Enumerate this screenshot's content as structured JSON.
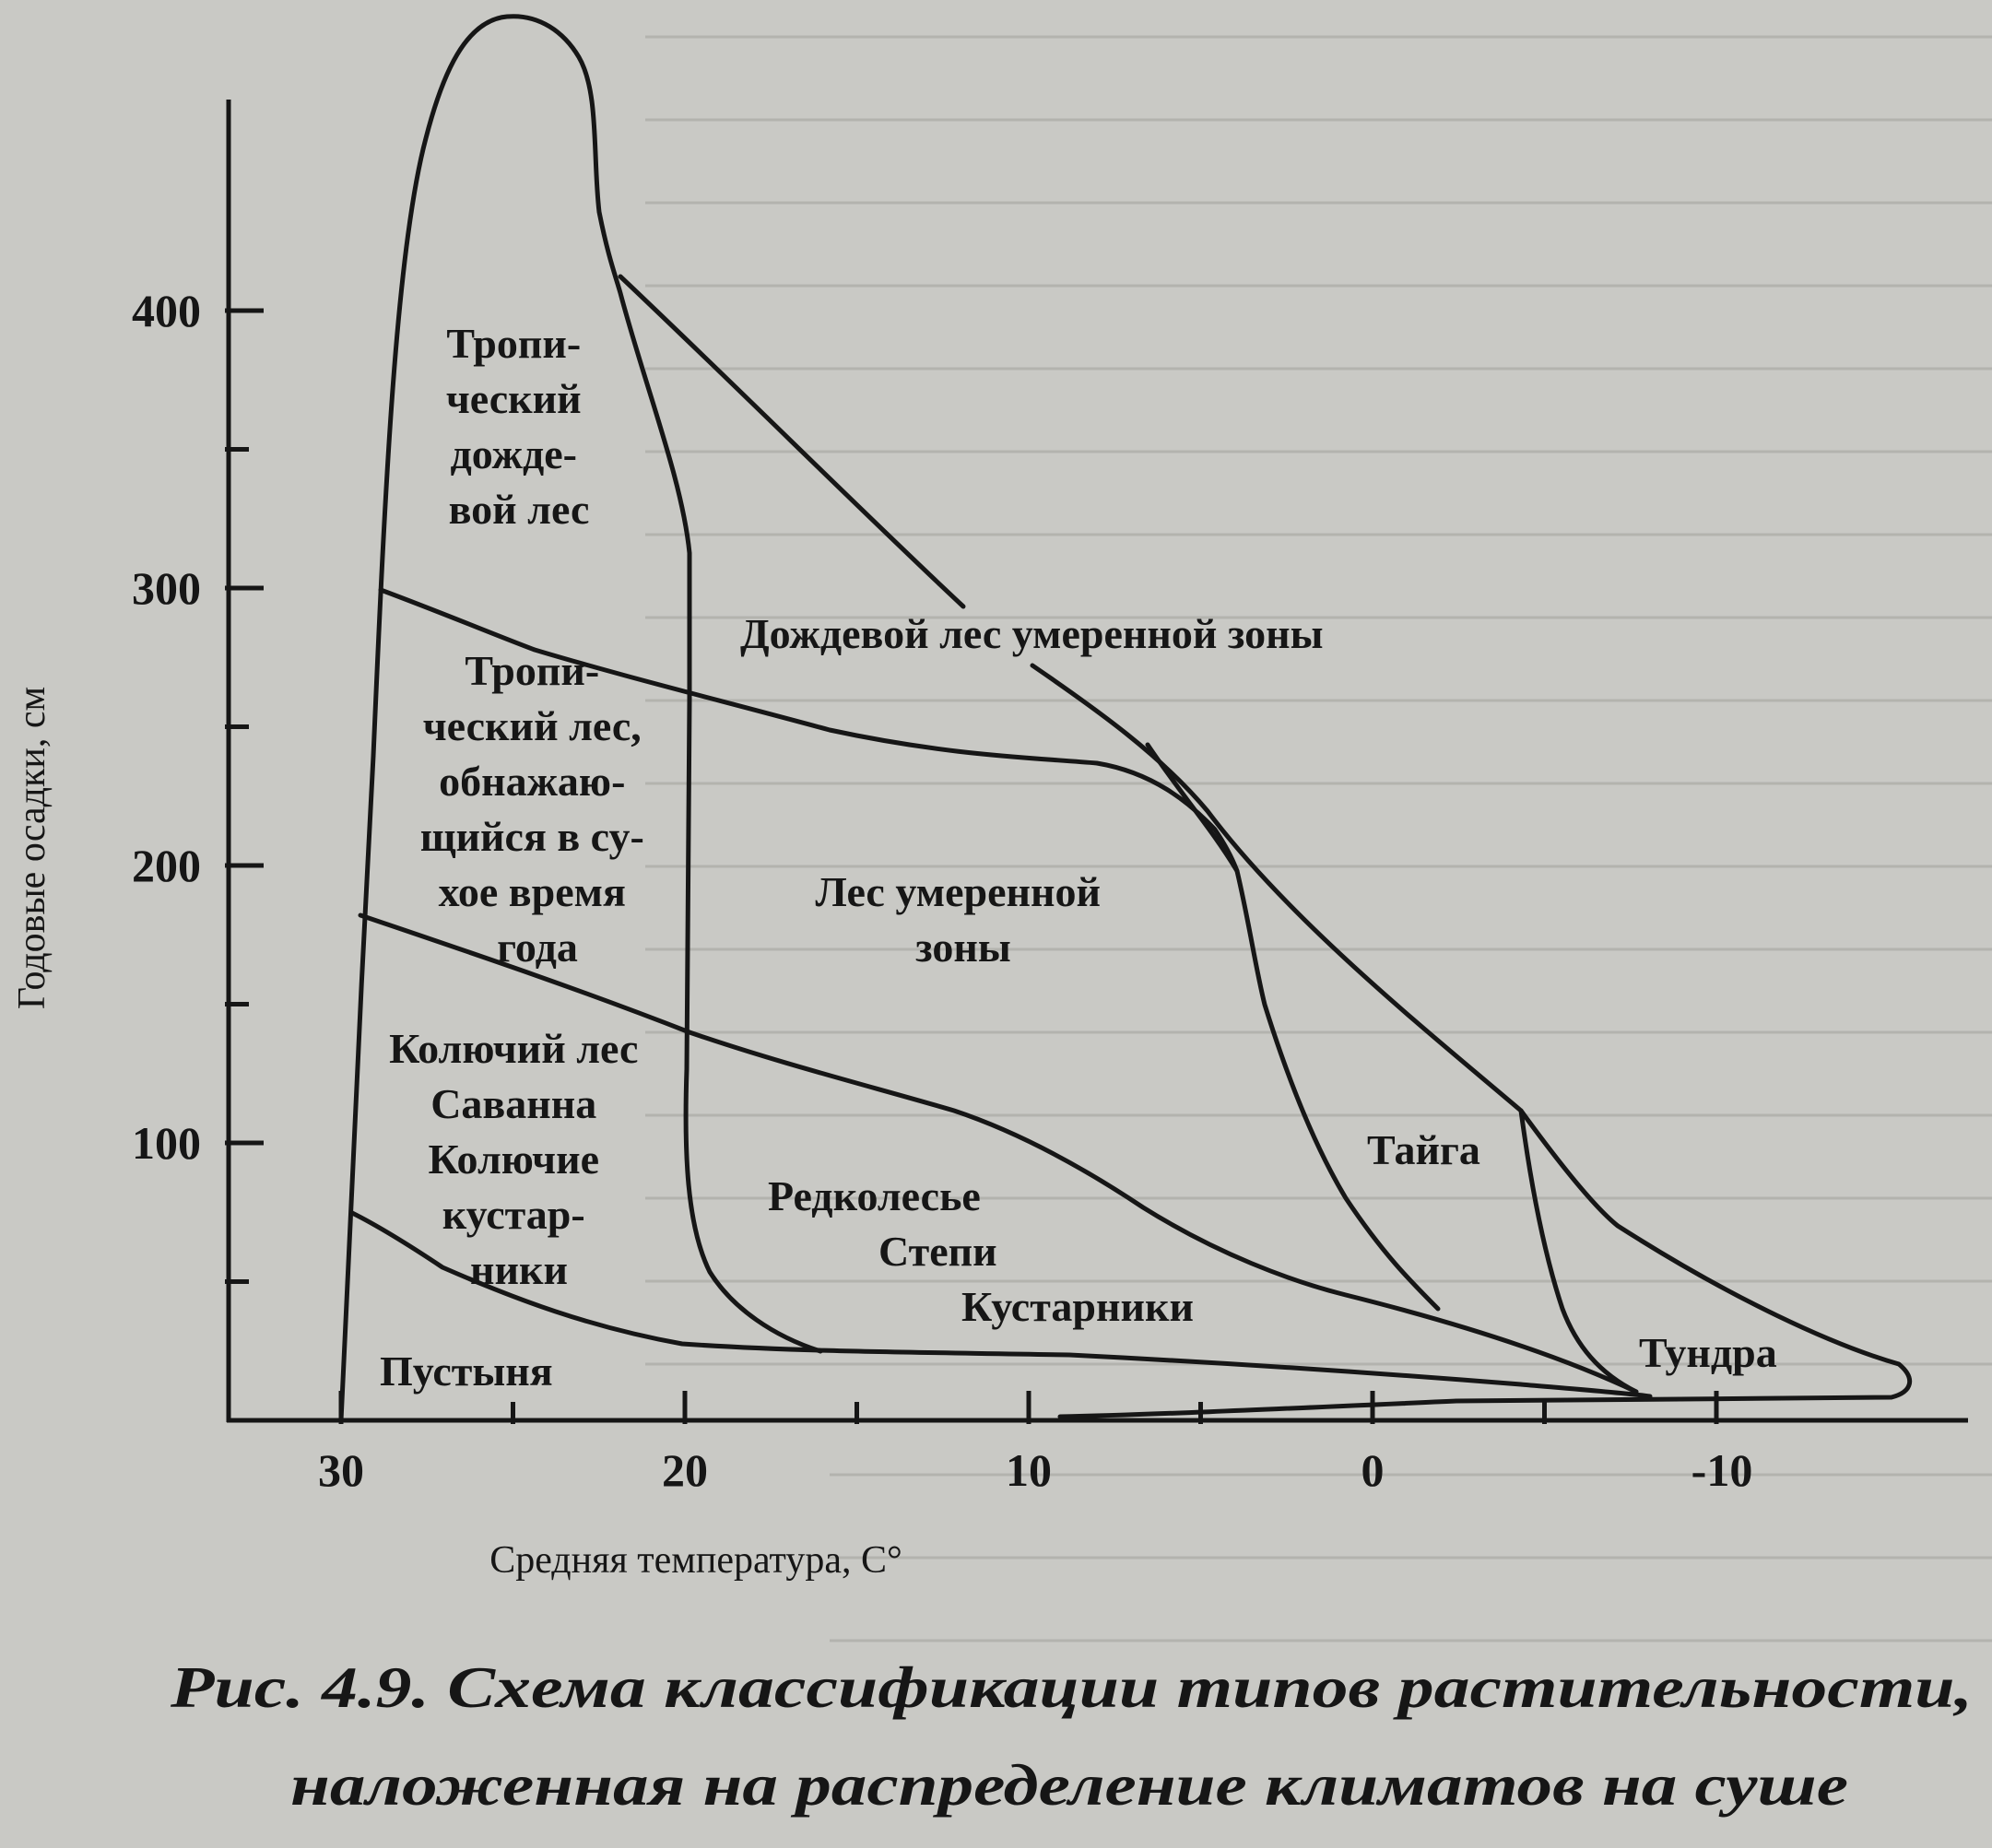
{
  "colors": {
    "paper": "#c9c9c5",
    "ink": "#161616",
    "bleed": "#b3b3ae"
  },
  "figure": {
    "y_axis_title": "Годовые осадки, см",
    "x_axis_title": "Средняя температура, С°",
    "y_ticks": [
      {
        "value": 100,
        "label": "100"
      },
      {
        "value": 200,
        "label": "200"
      },
      {
        "value": 300,
        "label": "300"
      },
      {
        "value": 400,
        "label": "400"
      }
    ],
    "y_minor_ticks": [
      50,
      150,
      250,
      350
    ],
    "x_ticks": [
      {
        "value": 30,
        "label": "30"
      },
      {
        "value": 20,
        "label": "20"
      },
      {
        "value": 10,
        "label": "10"
      },
      {
        "value": 0,
        "label": "0"
      },
      {
        "value": -10,
        "label": "-10"
      }
    ],
    "x_minor_ticks": [
      25,
      15,
      5,
      -5
    ],
    "regions": {
      "tropical_rain_forest": [
        "Тропи-",
        "ческий",
        "дожде-",
        "вой лес"
      ],
      "temperate_rain_forest": [
        "Дождевой лес умеренной зоны"
      ],
      "tropical_seasonal_forest": [
        "Тропи-",
        "ческий  лес,",
        "обнажаю-",
        "щийся в су-",
        "хое время",
        "года"
      ],
      "temperate_forest": [
        "Лес умеренной",
        "зоны"
      ],
      "thorn_forest_savanna": [
        "Колючий лес",
        "Саванна",
        "Колючие",
        "кустар-",
        "ники"
      ],
      "woodland_steppe": [
        "Редколесье",
        "Степи",
        "Кустарники"
      ],
      "taiga": [
        "Тайга"
      ],
      "tundra": [
        "Тундра"
      ],
      "desert": [
        "Пустыня"
      ]
    },
    "caption": {
      "line1": "Рис. 4.9. Схема классификации типов растительности,",
      "line2": "наложенная на распределение климатов на суше"
    }
  }
}
